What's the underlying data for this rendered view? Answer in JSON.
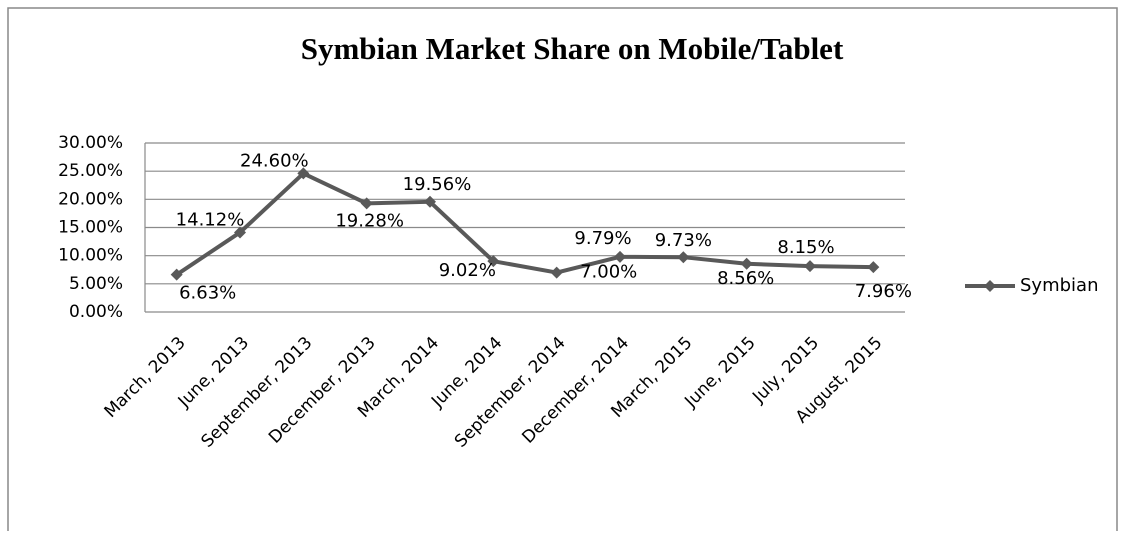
{
  "chart_data": {
    "type": "line",
    "title": "Symbian Market Share on Mobile/Tablet",
    "categories": [
      "March, 2013",
      "June, 2013",
      "September, 2013",
      "December, 2013",
      "March, 2014",
      "June, 2014",
      "September, 2014",
      "December, 2014",
      "March, 2015",
      "June, 2015",
      "July, 2015",
      "August, 2015"
    ],
    "series": [
      {
        "name": "Symbian",
        "color": "#595959",
        "values": [
          6.63,
          14.12,
          24.6,
          19.28,
          19.56,
          9.02,
          7.0,
          9.79,
          9.73,
          8.56,
          8.15,
          7.96
        ],
        "value_labels": [
          "6.63%",
          "14.12%",
          "24.60%",
          "19.28%",
          "19.56%",
          "9.02%",
          "7.00%",
          "9.79%",
          "9.73%",
          "8.56%",
          "8.15%",
          "7.96%"
        ]
      }
    ],
    "ylim": [
      0,
      30
    ],
    "yticks": [
      {
        "value": 0,
        "label": "0.00%"
      },
      {
        "value": 5,
        "label": "5.00%"
      },
      {
        "value": 10,
        "label": "10.00%"
      },
      {
        "value": 15,
        "label": "15.00%"
      },
      {
        "value": 20,
        "label": "20.00%"
      },
      {
        "value": 25,
        "label": "25.00%"
      },
      {
        "value": 30,
        "label": "30.00%"
      }
    ],
    "grid": true,
    "legend": "right"
  }
}
